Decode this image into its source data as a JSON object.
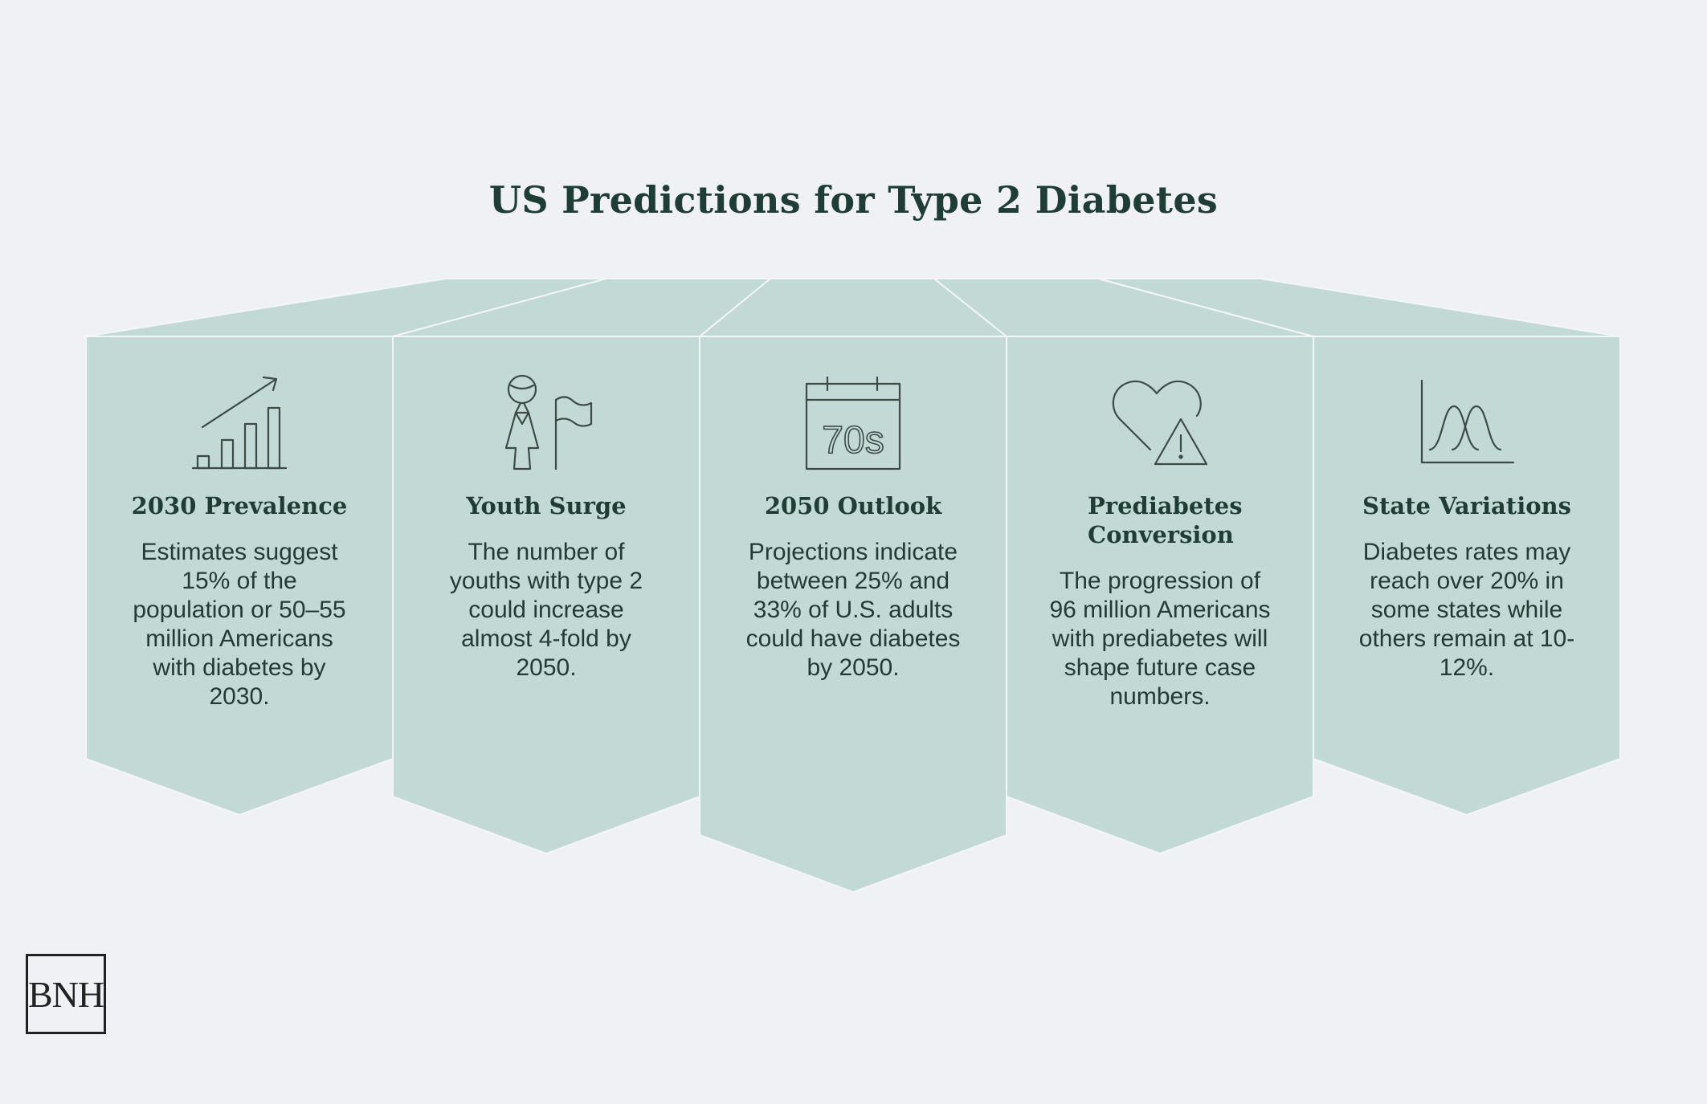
{
  "title": "US Predictions for Type 2 Diabetes",
  "colors": {
    "background": "#f0f1f4",
    "panel": "#c3d9d5",
    "title": "#1f3d35",
    "icon_stroke": "#3d4a46"
  },
  "columns": [
    {
      "icon": "growth-chart-icon",
      "heading": "2030 Prevalence",
      "text": "Estimates suggest 15% of the population or 50–55 million Americans with diabetes by 2030."
    },
    {
      "icon": "youth-with-flag-icon",
      "heading": "Youth Surge",
      "text": "The number of youths with type 2 could increase almost 4-fold by 2050."
    },
    {
      "icon": "calendar-icon",
      "icon_text": "70s",
      "heading": "2050 Outlook",
      "text": "Projections indicate between 25% and 33% of U.S. adults could have diabetes by 2050."
    },
    {
      "icon": "heart-warning-icon",
      "heading": "Prediabetes Conversion",
      "text": "The progression of 96 million Americans with prediabetes will shape future case numbers."
    },
    {
      "icon": "distribution-curves-icon",
      "heading": "State Variations",
      "text": "Diabetes rates may reach over 20% in some states while others remain at 10-12%."
    }
  ],
  "logo": {
    "text": "BNH"
  }
}
